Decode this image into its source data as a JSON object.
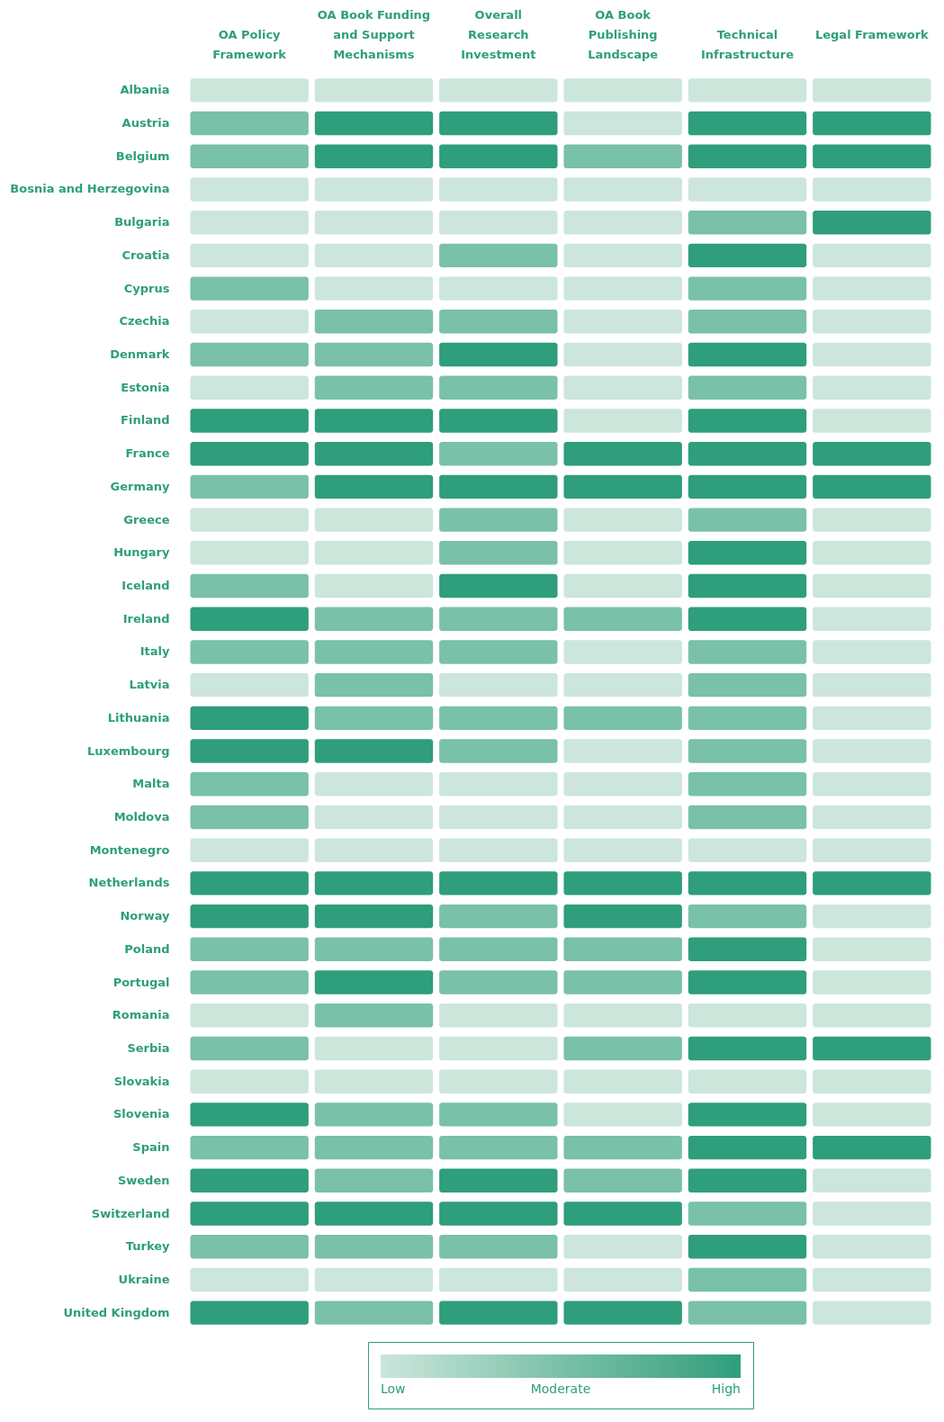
{
  "chart_data": {
    "type": "heatmap",
    "categories": [
      "OA Policy Framework",
      "OA Book Funding and Support Mechanisms",
      "Overall Research Investment",
      "OA Book Publishing Landscape",
      "Technical Infrastructure",
      "Legal Framework"
    ],
    "y_categories": [
      "Albania",
      "Austria",
      "Belgium",
      "Bosnia and Herzegovina",
      "Bulgaria",
      "Croatia",
      "Cyprus",
      "Czechia",
      "Denmark",
      "Estonia",
      "Finland",
      "France",
      "Germany",
      "Greece",
      "Hungary",
      "Iceland",
      "Ireland",
      "Italy",
      "Latvia",
      "Lithuania",
      "Luxembourg",
      "Malta",
      "Moldova",
      "Montenegro",
      "Netherlands",
      "Norway",
      "Poland",
      "Portugal",
      "Romania",
      "Serbia",
      "Slovakia",
      "Slovenia",
      "Spain",
      "Sweden",
      "Switzerland",
      "Turkey",
      "Ukraine",
      "United Kingdom"
    ],
    "clim": [
      1,
      3
    ],
    "cticks": [
      {
        "value": 3,
        "label": "High"
      },
      {
        "value": 2,
        "label": "Moderate"
      },
      {
        "value": 1,
        "label": "Low"
      }
    ],
    "colors": [
      "#cce6dc",
      "#79c1a8",
      "#2e9e7c"
    ],
    "cells": [
      [
        1,
        1,
        1,
        1,
        1,
        1
      ],
      [
        2,
        3,
        3,
        1,
        3,
        3
      ],
      [
        2,
        3,
        3,
        2,
        3,
        3
      ],
      [
        1,
        1,
        1,
        1,
        1,
        1
      ],
      [
        1,
        1,
        1,
        1,
        2,
        3
      ],
      [
        1,
        1,
        2,
        1,
        3,
        1
      ],
      [
        2,
        1,
        1,
        1,
        2,
        1
      ],
      [
        1,
        2,
        2,
        1,
        2,
        1
      ],
      [
        2,
        2,
        3,
        1,
        3,
        1
      ],
      [
        1,
        2,
        2,
        1,
        2,
        1
      ],
      [
        3,
        3,
        3,
        1,
        3,
        1
      ],
      [
        3,
        3,
        2,
        3,
        3,
        3
      ],
      [
        2,
        3,
        3,
        3,
        3,
        3
      ],
      [
        1,
        1,
        2,
        1,
        2,
        1
      ],
      [
        1,
        1,
        2,
        1,
        3,
        1
      ],
      [
        2,
        1,
        3,
        1,
        3,
        1
      ],
      [
        3,
        2,
        2,
        2,
        3,
        1
      ],
      [
        2,
        2,
        2,
        1,
        2,
        1
      ],
      [
        1,
        2,
        1,
        1,
        2,
        1
      ],
      [
        3,
        2,
        2,
        2,
        2,
        1
      ],
      [
        3,
        3,
        2,
        1,
        2,
        1
      ],
      [
        2,
        1,
        1,
        1,
        2,
        1
      ],
      [
        2,
        1,
        1,
        1,
        2,
        1
      ],
      [
        1,
        1,
        1,
        1,
        1,
        1
      ],
      [
        3,
        3,
        3,
        3,
        3,
        3
      ],
      [
        3,
        3,
        2,
        3,
        2,
        1
      ],
      [
        2,
        2,
        2,
        2,
        3,
        1
      ],
      [
        2,
        3,
        2,
        2,
        3,
        1
      ],
      [
        1,
        2,
        1,
        1,
        1,
        1
      ],
      [
        2,
        1,
        1,
        2,
        3,
        3
      ],
      [
        1,
        1,
        1,
        1,
        1,
        1
      ],
      [
        3,
        2,
        2,
        1,
        3,
        1
      ],
      [
        2,
        2,
        2,
        2,
        3,
        3
      ],
      [
        3,
        2,
        3,
        2,
        3,
        1
      ],
      [
        3,
        3,
        3,
        3,
        2,
        1
      ],
      [
        2,
        2,
        2,
        1,
        3,
        1
      ],
      [
        1,
        1,
        1,
        1,
        2,
        1
      ],
      [
        3,
        2,
        3,
        3,
        2,
        1
      ]
    ]
  }
}
